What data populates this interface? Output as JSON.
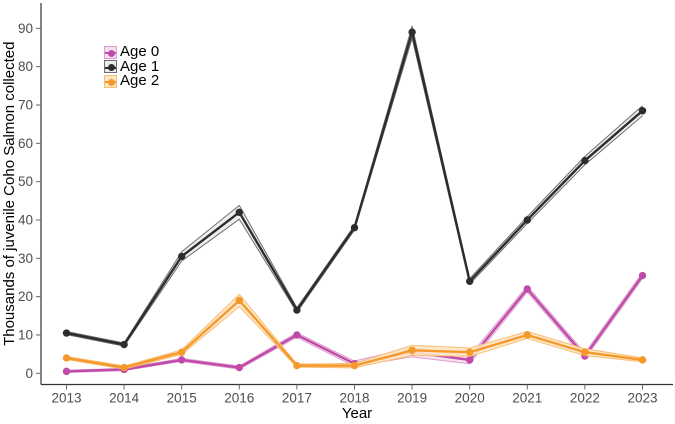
{
  "chart_data": {
    "type": "line",
    "title": "",
    "xlabel": "Year",
    "ylabel": "Thousands of juvenile Coho Salmon collected",
    "x": [
      2013,
      2014,
      2015,
      2016,
      2017,
      2018,
      2019,
      2020,
      2021,
      2022,
      2023
    ],
    "yticks": [
      0,
      10,
      20,
      30,
      40,
      50,
      60,
      70,
      80,
      90
    ],
    "ylim": [
      0,
      90
    ],
    "grid": false,
    "legend_position": "top-left-inside",
    "axis_color": "#333333",
    "tick_color": "#666666",
    "tick_label_color": "#4d4d4d",
    "title_color": "#000000",
    "series": [
      {
        "name": "Age 0",
        "color": "#bf4aa8",
        "ribbon_fill": "#f6dff0",
        "ribbon_edge": "#dc9ecf",
        "values": [
          0.5,
          1,
          3.5,
          1.5,
          10,
          2.5,
          5.5,
          3.5,
          22,
          4.5,
          25.5
        ],
        "ribbon_halfwidth": [
          0.3,
          0.3,
          0.4,
          0.4,
          0.6,
          0.7,
          1.2,
          1.0,
          0.8,
          0.8,
          0.8
        ]
      },
      {
        "name": "Age 1",
        "color": "#2d2d2d",
        "ribbon_fill": "#ececec",
        "ribbon_edge": "#6e6e6e",
        "values": [
          10.5,
          7.5,
          30.5,
          42,
          16.5,
          38,
          89,
          24,
          40,
          55.5,
          68.5
        ],
        "ribbon_halfwidth": [
          0.4,
          0.4,
          1.2,
          1.8,
          0.6,
          0.6,
          1.6,
          0.7,
          0.9,
          1.1,
          1.3
        ]
      },
      {
        "name": "Age 2",
        "color": "#f6992b",
        "ribbon_fill": "#fde7c8",
        "ribbon_edge": "#f7bd72",
        "values": [
          4,
          1.5,
          5.5,
          19,
          2,
          2,
          6,
          5.5,
          10,
          5.5,
          3.5
        ],
        "ribbon_halfwidth": [
          0.4,
          0.4,
          0.6,
          1.6,
          0.4,
          0.6,
          1.3,
          1.1,
          0.9,
          0.9,
          0.5
        ]
      }
    ]
  }
}
